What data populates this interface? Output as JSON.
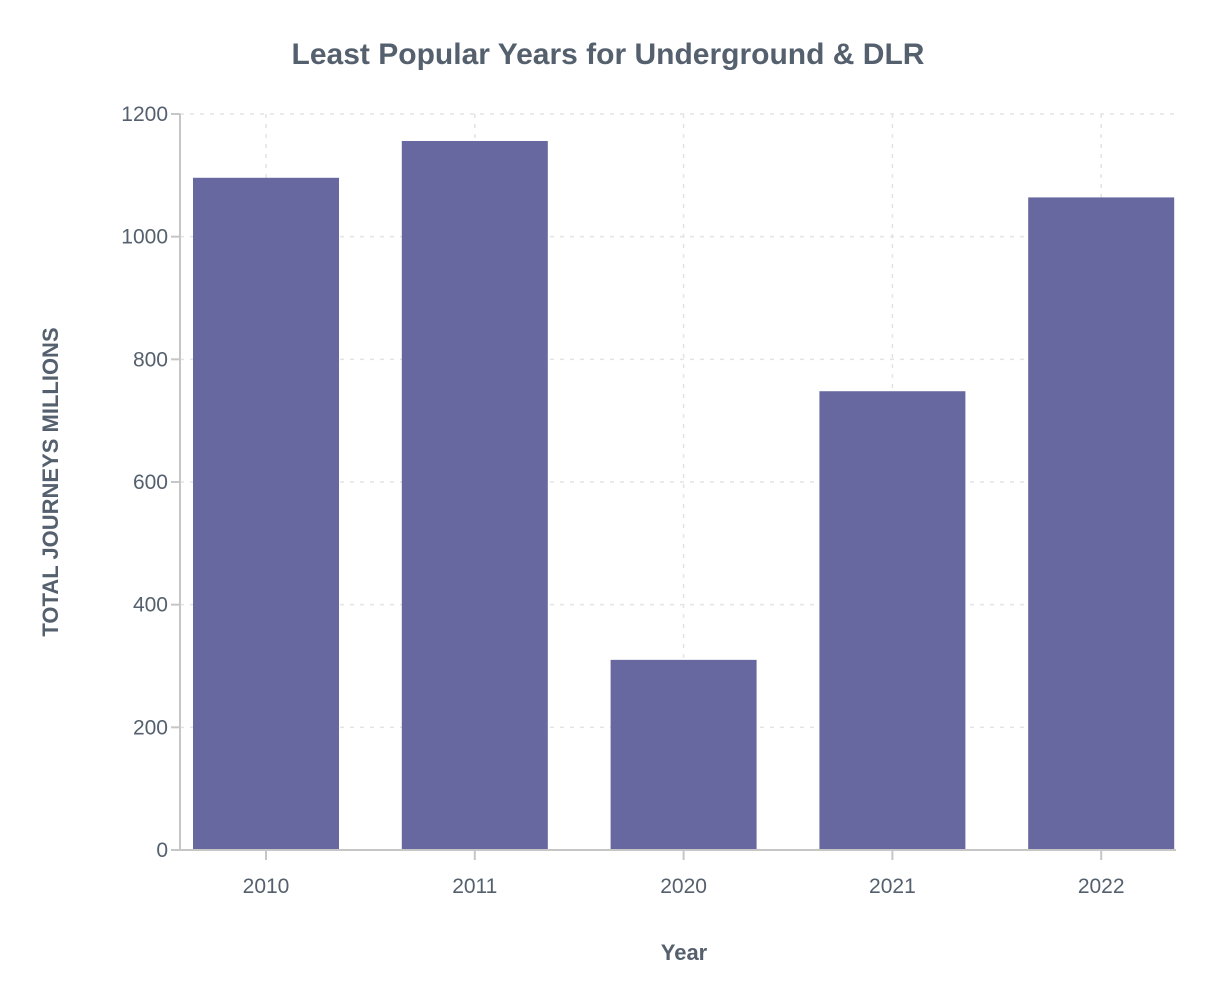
{
  "chart_data": {
    "type": "bar",
    "title": "Least Popular Years for Underground & DLR",
    "xlabel": "Year",
    "ylabel": "TOTAL JOURNEYS MILLIONS",
    "categories": [
      "2010",
      "2011",
      "2020",
      "2021",
      "2022"
    ],
    "values": [
      1096,
      1156,
      310,
      748,
      1064
    ],
    "ylim": [
      0,
      1200
    ],
    "yticks": [
      0,
      200,
      400,
      600,
      800,
      1000,
      1200
    ],
    "grid": true,
    "legend": "none",
    "bar_color": "#66689f"
  }
}
